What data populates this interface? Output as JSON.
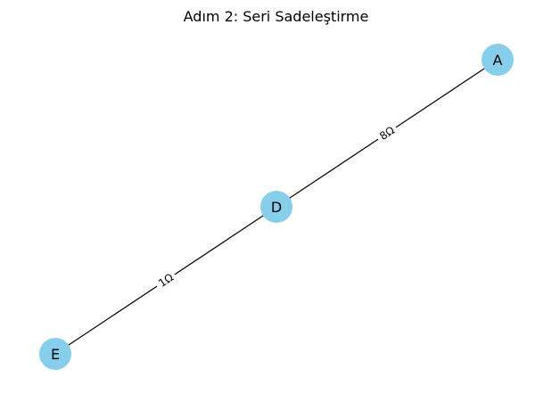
{
  "title": "Adım 2: Seri Sadeleştirme",
  "nodes": [
    {
      "id": "A",
      "label": "A"
    },
    {
      "id": "D",
      "label": "D"
    },
    {
      "id": "E",
      "label": "E"
    }
  ],
  "edges": [
    {
      "from": "D",
      "to": "A",
      "label": "8Ω"
    },
    {
      "from": "E",
      "to": "D",
      "label": "1Ω"
    }
  ],
  "colors": {
    "node_fill": "#87ceeb",
    "edge": "#000000"
  }
}
